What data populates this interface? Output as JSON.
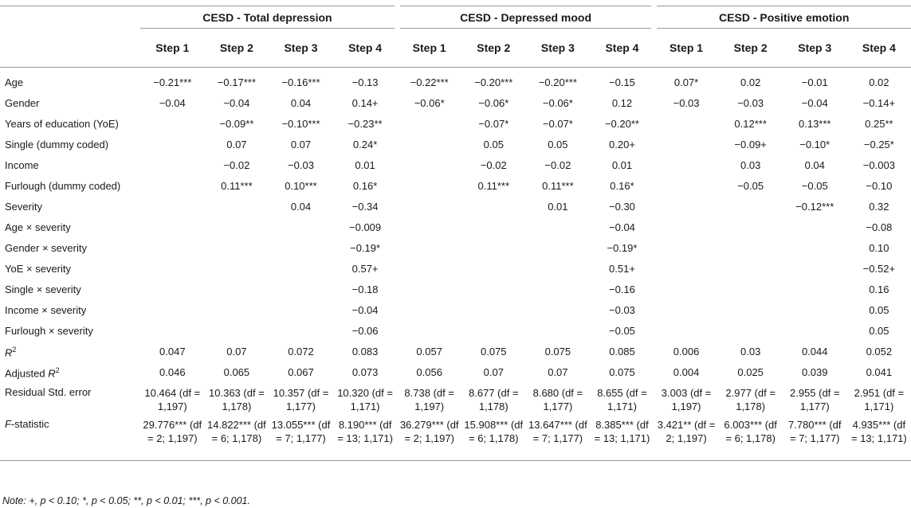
{
  "groups": [
    "CESD - Total depression",
    "CESD - Depressed mood",
    "CESD - Positive emotion"
  ],
  "steps": [
    "Step 1",
    "Step 2",
    "Step 3",
    "Step 4"
  ],
  "rows": [
    {
      "label": "Age",
      "cells": [
        "−0.21***",
        "−0.17***",
        "−0.16***",
        "−0.13",
        "−0.22***",
        "−0.20***",
        "−0.20***",
        "−0.15",
        "0.07*",
        "0.02",
        "−0.01",
        "0.02"
      ]
    },
    {
      "label": "Gender",
      "cells": [
        "−0.04",
        "−0.04",
        "0.04",
        "0.14+",
        "−0.06*",
        "−0.06*",
        "−0.06*",
        "0.12",
        "−0.03",
        "−0.03",
        "−0.04",
        "−0.14+"
      ]
    },
    {
      "label": "Years of education (YoE)",
      "cells": [
        "",
        "−0.09**",
        "−0.10***",
        "−0.23**",
        "",
        "−0.07*",
        "−0.07*",
        "−0.20**",
        "",
        "0.12***",
        "0.13***",
        "0.25**"
      ]
    },
    {
      "label": "Single (dummy coded)",
      "cells": [
        "",
        "0.07",
        "0.07",
        "0.24*",
        "",
        "0.05",
        "0.05",
        "0.20+",
        "",
        "−0.09+",
        "−0.10*",
        "−0.25*"
      ]
    },
    {
      "label": "Income",
      "cells": [
        "",
        "−0.02",
        "−0.03",
        "0.01",
        "",
        "−0.02",
        "−0.02",
        "0.01",
        "",
        "0.03",
        "0.04",
        "−0.003"
      ]
    },
    {
      "label": "Furlough (dummy coded)",
      "cells": [
        "",
        "0.11***",
        "0.10***",
        "0.16*",
        "",
        "0.11***",
        "0.11***",
        "0.16*",
        "",
        "−0.05",
        "−0.05",
        "−0.10"
      ]
    },
    {
      "label": "Severity",
      "cells": [
        "",
        "",
        "0.04",
        "−0.34",
        "",
        "",
        "0.01",
        "−0.30",
        "",
        "",
        "−0.12***",
        "0.32"
      ]
    },
    {
      "label": "Age × severity",
      "cells": [
        "",
        "",
        "",
        "−0.009",
        "",
        "",
        "",
        "−0.04",
        "",
        "",
        "",
        "−0.08"
      ]
    },
    {
      "label": "Gender × severity",
      "cells": [
        "",
        "",
        "",
        "−0.19*",
        "",
        "",
        "",
        "−0.19*",
        "",
        "",
        "",
        "0.10"
      ]
    },
    {
      "label": "YoE × severity",
      "cells": [
        "",
        "",
        "",
        "0.57+",
        "",
        "",
        "",
        "0.51+",
        "",
        "",
        "",
        "−0.52+"
      ]
    },
    {
      "label": "Single × severity",
      "cells": [
        "",
        "",
        "",
        "−0.18",
        "",
        "",
        "",
        "−0.16",
        "",
        "",
        "",
        "0.16"
      ]
    },
    {
      "label": "Income × severity",
      "cells": [
        "",
        "",
        "",
        "−0.04",
        "",
        "",
        "",
        "−0.03",
        "",
        "",
        "",
        "0.05"
      ]
    },
    {
      "label": "Furlough × severity",
      "cells": [
        "",
        "",
        "",
        "−0.06",
        "",
        "",
        "",
        "−0.05",
        "",
        "",
        "",
        "0.05"
      ]
    },
    {
      "label_pre": "R",
      "label_sup": "2",
      "label_post": "",
      "cells": [
        "0.047",
        "0.07",
        "0.072",
        "0.083",
        "0.057",
        "0.075",
        "0.075",
        "0.085",
        "0.006",
        "0.03",
        "0.044",
        "0.052"
      ]
    },
    {
      "label_pre": "Adjusted ",
      "label_sup": "2",
      "label_post": "",
      "label_it": "R",
      "cells": [
        "0.046",
        "0.065",
        "0.067",
        "0.073",
        "0.056",
        "0.07",
        "0.07",
        "0.075",
        "0.004",
        "0.025",
        "0.039",
        "0.041"
      ]
    },
    {
      "label": "Residual Std. error",
      "cells": [
        "10.464 (df = 1,197)",
        "10.363 (df = 1,178)",
        "10.357 (df = 1,177)",
        "10.320 (df = 1,171)",
        "8.738 (df = 1,197)",
        "8.677 (df = 1,178)",
        "8.680 (df = 1,177)",
        "8.655 (df = 1,171)",
        "3.003 (df = 1,197)",
        "2.977 (df = 1,178)",
        "2.955 (df = 1,177)",
        "2.951 (df = 1,171)"
      ]
    },
    {
      "label_it": "F",
      "label_post": "-statistic",
      "cells": [
        "29.776*** (df = 2; 1,197)",
        "14.822*** (df = 6; 1,178)",
        "13.055*** (df = 7; 1,177)",
        "8.190*** (df = 13; 1,171)",
        "36.279*** (df = 2; 1,197)",
        "15.908*** (df = 6; 1,178)",
        "13.647*** (df = 7; 1,177)",
        "8.385*** (df = 13; 1,171)",
        "3.421** (df = 2; 1,197)",
        "6.003*** (df = 6; 1,178)",
        "7.780*** (df = 7; 1,177)",
        "4.935*** (df = 13; 1,171)"
      ]
    }
  ],
  "note": "Note: +, p < 0.10; *, p < 0.05; **, p < 0.01; ***, p < 0.001."
}
